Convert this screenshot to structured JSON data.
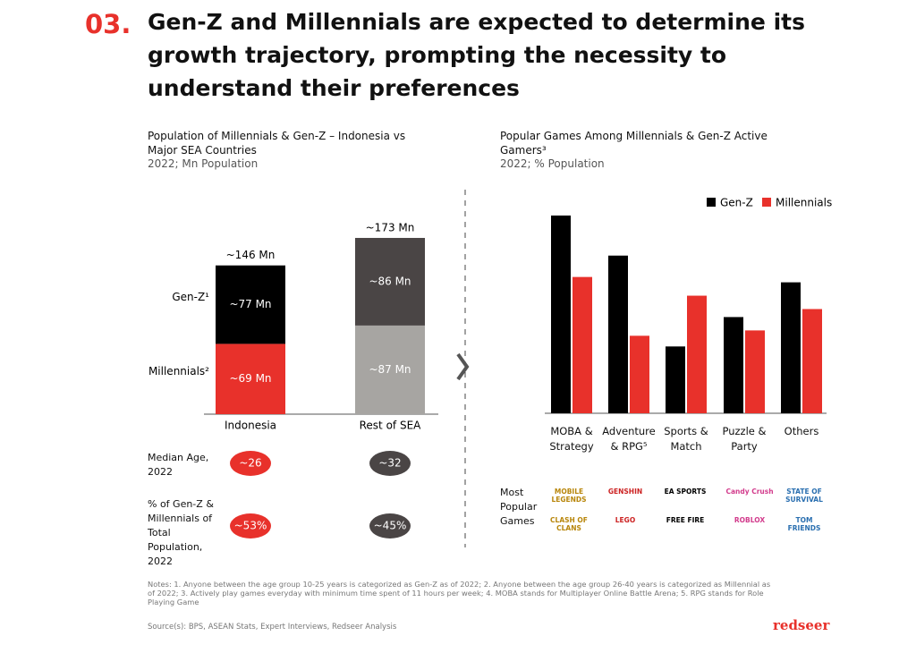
{
  "header": {
    "number": "03.",
    "title": "Gen-Z and Millennials are expected to determine its growth trajectory, prompting the necessity to understand their preferences"
  },
  "chart_data": [
    {
      "type": "stacked-bar",
      "title": "Population of Millennials & Gen-Z – Indonesia vs Major SEA Countries",
      "subtitle": "2022; Mn Population",
      "categories": [
        "Indonesia",
        "Rest of SEA"
      ],
      "series": [
        {
          "name": "Millennials²",
          "colors": [
            "#e8312b",
            "#a7a5a2"
          ],
          "values": [
            69,
            87
          ],
          "value_labels": [
            "~69 Mn",
            "~87 Mn"
          ]
        },
        {
          "name": "Gen-Z¹",
          "colors": [
            "#000000",
            "#4a4545"
          ],
          "values": [
            77,
            86
          ],
          "value_labels": [
            "~77 Mn",
            "~86 Mn"
          ]
        }
      ],
      "totals": [
        146,
        173
      ],
      "total_labels": [
        "~146 Mn",
        "~173 Mn"
      ],
      "ylim": [
        0,
        180
      ]
    },
    {
      "type": "grouped-bar",
      "title": "Popular Games Among Millennials & Gen-Z Active Gamers³",
      "subtitle": "2022; % Population",
      "categories": [
        "MOBA & Strategy",
        "Adventure & RPG⁵",
        "Sports & Match",
        "Puzzle & Party",
        "Others"
      ],
      "series": [
        {
          "name": "Gen-Z",
          "color": "#000000",
          "values": [
            74,
            59,
            25,
            36,
            49
          ]
        },
        {
          "name": "Millennials",
          "color": "#e8312b",
          "values": [
            51,
            29,
            44,
            31,
            39
          ]
        }
      ],
      "ylim": [
        0,
        80
      ],
      "legend": "top-right"
    }
  ],
  "stats": {
    "rows": [
      {
        "label": "Median Age, 2022",
        "values": [
          "~26",
          "~32"
        ]
      },
      {
        "label": "% of Gen-Z & Millennials of Total Population, 2022",
        "values": [
          "~53%",
          "~45%"
        ]
      }
    ],
    "colors": [
      "#e8312b",
      "#4a4545"
    ]
  },
  "games": {
    "label": "Most Popular Games",
    "logos": [
      [
        "MOBILE LEGENDS",
        "CLASH OF CLANS"
      ],
      [
        "GENSHIN",
        "LEGO"
      ],
      [
        "EA SPORTS",
        "FREE FIRE"
      ],
      [
        "Candy Crush",
        "ROBLOX"
      ],
      [
        "STATE OF SURVIVAL",
        "TOM FRIENDS"
      ]
    ]
  },
  "notes": "Notes: 1. Anyone between the age group 10-25 years is categorized as Gen-Z as of 2022; 2. Anyone between the age group 26-40 years is categorized as Millennial as of 2022; 3. Actively play games everyday with minimum time spent of 11 hours per week; 4. MOBA stands for Multiplayer Online Battle Arena; 5. RPG stands for Role Playing Game",
  "source": "Source(s): BPS, ASEAN Stats, Expert Interviews, Redseer Analysis",
  "brand": "redseer"
}
